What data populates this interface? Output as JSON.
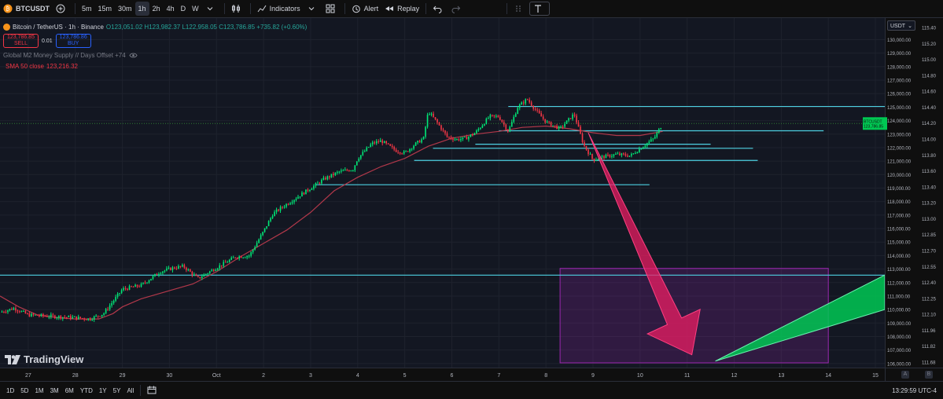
{
  "toolbar": {
    "symbol": "BTCUSDT",
    "intervals": [
      "5m",
      "15m",
      "30m",
      "1h",
      "2h",
      "4h",
      "D",
      "W"
    ],
    "active_interval": "1h",
    "indicators_label": "Indicators",
    "alert_label": "Alert",
    "replay_label": "Replay"
  },
  "legend": {
    "title": "Bitcoin / TetherUS · 1h · Binance",
    "open": "O123,051.02",
    "high": "H123,982.37",
    "low": "L122,958.05",
    "close": "C123,786.85",
    "change": "+735.82 (+0.60%)",
    "sell_price": "123,786.85",
    "sell_label": "SELL",
    "spread": "0.01",
    "buy_price": "123,786.86",
    "buy_label": "BUY",
    "m2_label": "Global M2 Money Supply // Days Offset +74",
    "sma_label": "SMA 50 close",
    "sma_value": "123,216.32"
  },
  "currency": "USDT",
  "current_price_tag": {
    "symbol": "BTCUSDT",
    "price": "123,786.85",
    "sub": "30:01"
  },
  "brand": "TradingView",
  "bottombar": {
    "ranges": [
      "1D",
      "5D",
      "1M",
      "3M",
      "6M",
      "YTD",
      "1Y",
      "5Y",
      "All"
    ],
    "clock": "13:29:59 UTC-4"
  },
  "colors": {
    "up": "#00e676",
    "down": "#f23645",
    "sma": "#b2384a",
    "hline": "#4dd0e1",
    "box": "#9c27b0",
    "arrow_red": "#e91e63",
    "arrow_green": "#00c853"
  },
  "chart_data": {
    "type": "candlestick",
    "title": "Bitcoin / TetherUS · 1h · Binance",
    "x_ticks": [
      "27",
      "28",
      "29",
      "30",
      "Oct",
      "2",
      "3",
      "4",
      "5",
      "6",
      "7",
      "8",
      "9",
      "10",
      "11",
      "12",
      "13",
      "14",
      "15"
    ],
    "y_ticks": [
      "106,000.00",
      "107,000.00",
      "108,000.00",
      "109,000.00",
      "110,000.00",
      "111,000.00",
      "112,000.00",
      "113,000.00",
      "114,000.00",
      "115,000.00",
      "116,000.00",
      "117,000.00",
      "118,000.00",
      "119,000.00",
      "120,000.00",
      "121,000.00",
      "122,000.00",
      "123,000.00",
      "124,000.00",
      "125,000.00",
      "126,000.00",
      "127,000.00",
      "128,000.00",
      "129,000.00",
      "130,000.00"
    ],
    "m2_ticks": [
      "111.68",
      "111.82",
      "111.96",
      "112.10",
      "112.25",
      "112.40",
      "112.55",
      "112.70",
      "112.85",
      "113.00",
      "113.20",
      "113.40",
      "113.60",
      "113.80",
      "114.00",
      "114.20",
      "114.40",
      "114.60",
      "114.80",
      "115.00",
      "115.20",
      "115.40"
    ],
    "ylim": [
      105700,
      131600
    ],
    "xlim": [
      -0.6,
      18.2
    ],
    "price_path": [
      [
        -0.6,
        109800
      ],
      [
        -0.3,
        110100
      ],
      [
        0,
        109600
      ],
      [
        0.5,
        109500
      ],
      [
        1,
        109400
      ],
      [
        1.3,
        109300
      ],
      [
        1.6,
        109700
      ],
      [
        1.8,
        110600
      ],
      [
        2,
        111500
      ],
      [
        2.4,
        111800
      ],
      [
        2.8,
        112800
      ],
      [
        3.1,
        113100
      ],
      [
        3.3,
        113200
      ],
      [
        3.6,
        112300
      ],
      [
        3.8,
        112700
      ],
      [
        4.1,
        113300
      ],
      [
        4.4,
        113900
      ],
      [
        4.7,
        114000
      ],
      [
        5,
        115800
      ],
      [
        5.2,
        117100
      ],
      [
        5.4,
        117600
      ],
      [
        5.7,
        118300
      ],
      [
        6,
        119000
      ],
      [
        6.3,
        119700
      ],
      [
        6.6,
        120200
      ],
      [
        6.9,
        120400
      ],
      [
        7,
        121200
      ],
      [
        7.3,
        122300
      ],
      [
        7.5,
        122500
      ],
      [
        7.8,
        121800
      ],
      [
        8,
        121600
      ],
      [
        8.2,
        122200
      ],
      [
        8.4,
        122700
      ],
      [
        8.5,
        124700
      ],
      [
        8.7,
        123800
      ],
      [
        8.9,
        122800
      ],
      [
        9.1,
        122600
      ],
      [
        9.3,
        122700
      ],
      [
        9.5,
        123100
      ],
      [
        9.8,
        124300
      ],
      [
        10,
        124300
      ],
      [
        10.2,
        123200
      ],
      [
        10.4,
        125000
      ],
      [
        10.6,
        125600
      ],
      [
        10.8,
        124700
      ],
      [
        11,
        123900
      ],
      [
        11.3,
        123400
      ],
      [
        11.6,
        124500
      ],
      [
        11.8,
        122200
      ],
      [
        12,
        121100
      ],
      [
        12.2,
        121300
      ],
      [
        12.5,
        121500
      ],
      [
        12.8,
        121400
      ],
      [
        13.1,
        122200
      ],
      [
        13.3,
        122700
      ],
      [
        13.48,
        123786
      ]
    ],
    "sma_path": [
      [
        -0.6,
        111000
      ],
      [
        -0.2,
        110200
      ],
      [
        0.2,
        109600
      ],
      [
        0.6,
        109400
      ],
      [
        1,
        109300
      ],
      [
        1.5,
        109300
      ],
      [
        1.8,
        109700
      ],
      [
        2,
        110200
      ],
      [
        2.4,
        110800
      ],
      [
        3,
        111400
      ],
      [
        3.5,
        111900
      ],
      [
        4,
        112800
      ],
      [
        4.5,
        113900
      ],
      [
        5,
        114900
      ],
      [
        5.5,
        115900
      ],
      [
        6,
        117200
      ],
      [
        6.5,
        118800
      ],
      [
        7,
        119800
      ],
      [
        7.5,
        120600
      ],
      [
        8,
        121200
      ],
      [
        8.5,
        122100
      ],
      [
        9,
        122700
      ],
      [
        9.5,
        123000
      ],
      [
        10,
        123200
      ],
      [
        10.5,
        123500
      ],
      [
        11,
        123600
      ],
      [
        11.5,
        123400
      ],
      [
        12,
        123100
      ],
      [
        12.5,
        122900
      ],
      [
        13,
        122900
      ],
      [
        13.48,
        123200
      ]
    ],
    "horizontal_lines": [
      {
        "price": 125050,
        "x0": 10.2,
        "x1": 18.2
      },
      {
        "price": 123250,
        "x0": 10.0,
        "x1": 16.9
      },
      {
        "price": 122250,
        "x0": 9.5,
        "x1": 14.5
      },
      {
        "price": 121950,
        "x0": 8.6,
        "x1": 15.4
      },
      {
        "price": 121050,
        "x0": 8.2,
        "x1": 15.5
      },
      {
        "price": 119250,
        "x0": 6.1,
        "x1": 13.2
      },
      {
        "price": 112550,
        "x0": -0.6,
        "x1": 18.2
      }
    ],
    "zones": [
      {
        "x0": 11.3,
        "x1": 17.0,
        "y0": 106050,
        "y1": 113050
      }
    ],
    "arrows": [
      {
        "kind": "down",
        "from": [
          11.9,
          123100
        ],
        "to": [
          14.1,
          106650
        ]
      },
      {
        "kind": "up",
        "from": [
          14.6,
          106180
        ],
        "to": [
          18.2,
          111280
        ]
      }
    ]
  }
}
